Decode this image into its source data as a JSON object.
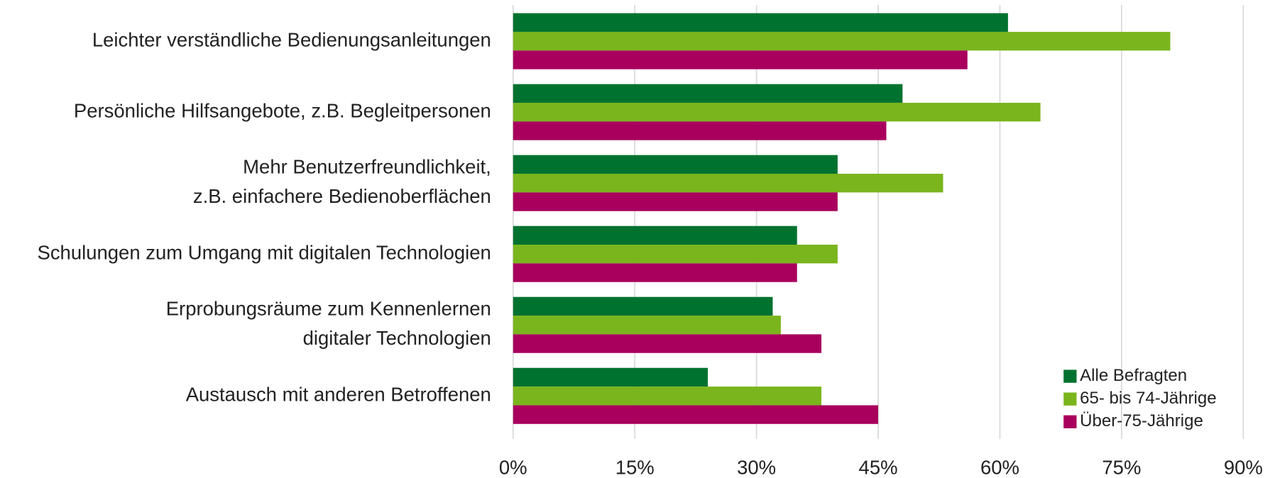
{
  "chart_data": {
    "type": "hbar",
    "categories": [
      "Leichter verständliche Bedienungsanleitungen",
      "Persönliche Hilfsangebote, z.B. Begleitpersonen",
      "Mehr Benutzerfreundlichkeit,\nz.B. einfachere Bedienoberflächen",
      "Schulungen zum Umgang mit digitalen Technologien",
      "Erprobungsräume zum Kennenlernen\ndigitaler Technologien",
      "Austausch mit anderen Betroffenen"
    ],
    "series": [
      {
        "name": "Alle Befragten",
        "color": "#00722f",
        "values": [
          61,
          48,
          40,
          35,
          32,
          24
        ]
      },
      {
        "name": "65- bis 74-Jährige",
        "color": "#7ab51d",
        "values": [
          81,
          65,
          53,
          40,
          33,
          38
        ]
      },
      {
        "name": "Über-75-Jährige",
        "color": "#a8005c",
        "values": [
          56,
          46,
          40,
          35,
          38,
          45
        ]
      }
    ],
    "xlim": [
      0,
      90
    ],
    "xticks": [
      {
        "value": 0,
        "label": "0%"
      },
      {
        "value": 15,
        "label": "15%"
      },
      {
        "value": 30,
        "label": "30%"
      },
      {
        "value": 45,
        "label": "45%"
      },
      {
        "value": 60,
        "label": "60%"
      },
      {
        "value": 75,
        "label": "75%"
      },
      {
        "value": 90,
        "label": "90%"
      }
    ],
    "grid": true,
    "legend": "lower right"
  }
}
